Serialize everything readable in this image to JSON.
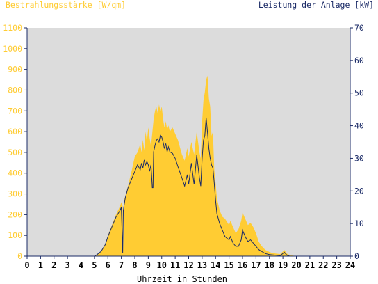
{
  "chart_data": {
    "type": "area",
    "left_axis_title": "Bestrahlungsstärke [W/qm]",
    "right_axis_title": "Leistung der Anlage [kW]",
    "xlabel": "Uhrzeit in Stunden",
    "xlim": [
      0,
      24
    ],
    "ylim_left": [
      0,
      1100
    ],
    "ylim_right": [
      0,
      70
    ],
    "x_ticks": [
      "0",
      "1",
      "2",
      "3",
      "4",
      "5",
      "6",
      "7",
      "8",
      "9",
      "10",
      "11",
      "12",
      "13",
      "14",
      "15",
      "16",
      "17",
      "18",
      "19",
      "20",
      "21",
      "22",
      "23",
      "24"
    ],
    "y_left_ticks": [
      "0",
      "100",
      "200",
      "300",
      "400",
      "500",
      "600",
      "700",
      "800",
      "900",
      "1000",
      "1100"
    ],
    "y_right_ticks": [
      "0",
      "10",
      "20",
      "30",
      "40",
      "50",
      "60",
      "70"
    ],
    "grid": false,
    "colors": {
      "irradiance_fill": "#ffcc33",
      "power_line": "#1a2a66",
      "left_axis_text": "#ffcc33",
      "right_axis_text": "#1a2a66",
      "plot_background": "#dcdcdc"
    },
    "series": [
      {
        "axis": "left",
        "style": "filled-area",
        "x": [
          0,
          5.0,
          5.2,
          5.5,
          5.8,
          6.0,
          6.3,
          6.6,
          6.9,
          7.0,
          7.1,
          7.15,
          7.2,
          7.3,
          7.5,
          7.8,
          8.0,
          8.2,
          8.4,
          8.5,
          8.6,
          8.7,
          8.8,
          8.9,
          9.0,
          9.1,
          9.2,
          9.4,
          9.5,
          9.6,
          9.7,
          9.8,
          9.9,
          10.0,
          10.1,
          10.2,
          10.3,
          10.4,
          10.5,
          10.6,
          10.8,
          11.0,
          11.2,
          11.5,
          11.7,
          11.9,
          12.0,
          12.2,
          12.4,
          12.6,
          12.8,
          12.9,
          13.0,
          13.1,
          13.2,
          13.3,
          13.4,
          13.5,
          13.6,
          13.7,
          13.8,
          13.9,
          14.0,
          14.1,
          14.3,
          14.5,
          14.7,
          15.0,
          15.1,
          15.3,
          15.5,
          15.7,
          15.9,
          16.0,
          16.2,
          16.4,
          16.6,
          16.8,
          17.0,
          17.2,
          17.4,
          17.7,
          18.0,
          18.2,
          18.5,
          18.8,
          19.0,
          19.1,
          19.3,
          19.5,
          20.0,
          24
        ],
        "y": [
          0,
          0,
          8,
          25,
          60,
          100,
          150,
          200,
          240,
          260,
          240,
          30,
          270,
          290,
          340,
          420,
          480,
          500,
          540,
          500,
          560,
          510,
          600,
          550,
          620,
          570,
          530,
          660,
          700,
          720,
          690,
          730,
          700,
          720,
          660,
          620,
          650,
          610,
          630,
          600,
          620,
          590,
          560,
          490,
          460,
          520,
          480,
          550,
          490,
          600,
          500,
          470,
          650,
          750,
          790,
          850,
          870,
          760,
          720,
          580,
          600,
          420,
          350,
          280,
          220,
          190,
          180,
          150,
          170,
          140,
          110,
          130,
          170,
          210,
          180,
          150,
          160,
          140,
          110,
          70,
          50,
          30,
          20,
          15,
          12,
          10,
          22,
          30,
          12,
          5,
          0,
          0
        ]
      },
      {
        "axis": "right",
        "style": "line",
        "x": [
          0,
          5.0,
          5.2,
          5.5,
          5.8,
          6.0,
          6.3,
          6.6,
          6.9,
          7.0,
          7.05,
          7.1,
          7.15,
          7.2,
          7.3,
          7.5,
          7.8,
          8.0,
          8.2,
          8.4,
          8.5,
          8.6,
          8.7,
          8.8,
          8.9,
          9.0,
          9.1,
          9.2,
          9.3,
          9.35,
          9.4,
          9.5,
          9.6,
          9.7,
          9.8,
          9.9,
          10.0,
          10.1,
          10.2,
          10.3,
          10.4,
          10.5,
          10.6,
          10.8,
          11.0,
          11.2,
          11.5,
          11.7,
          11.9,
          12.0,
          12.2,
          12.4,
          12.6,
          12.8,
          12.9,
          13.0,
          13.1,
          13.2,
          13.3,
          13.4,
          13.5,
          13.6,
          13.7,
          13.8,
          13.9,
          14.0,
          14.1,
          14.3,
          14.5,
          14.7,
          15.0,
          15.1,
          15.3,
          15.5,
          15.7,
          15.9,
          16.0,
          16.2,
          16.4,
          16.6,
          16.8,
          17.0,
          17.2,
          17.4,
          17.7,
          18.0,
          18.2,
          18.5,
          18.8,
          19.0,
          19.1,
          19.3,
          19.5,
          20.0,
          24
        ],
        "y": [
          0,
          0,
          0.5,
          1.5,
          3.5,
          6,
          9,
          12,
          14,
          15,
          8,
          1,
          14,
          15.5,
          18,
          21,
          24,
          26,
          28,
          26.5,
          28.5,
          27,
          29.5,
          28,
          29,
          28,
          26,
          28,
          21,
          21,
          32,
          34,
          35.5,
          36,
          35,
          37,
          36.5,
          35,
          33,
          34.5,
          32,
          33.5,
          32,
          31.5,
          30,
          27.5,
          24,
          21.5,
          25,
          22,
          28.5,
          22,
          31,
          24,
          21.5,
          30,
          35.5,
          37,
          42.5,
          38,
          33,
          30,
          28,
          27,
          22.5,
          17,
          13,
          10,
          8,
          6,
          5,
          6,
          4,
          3,
          3,
          5,
          8,
          6,
          4.5,
          5,
          4,
          3,
          2,
          1.5,
          0.8,
          0.5,
          0.4,
          0.3,
          0.2,
          0.8,
          1.2,
          0.3,
          0,
          0,
          0
        ]
      }
    ]
  }
}
